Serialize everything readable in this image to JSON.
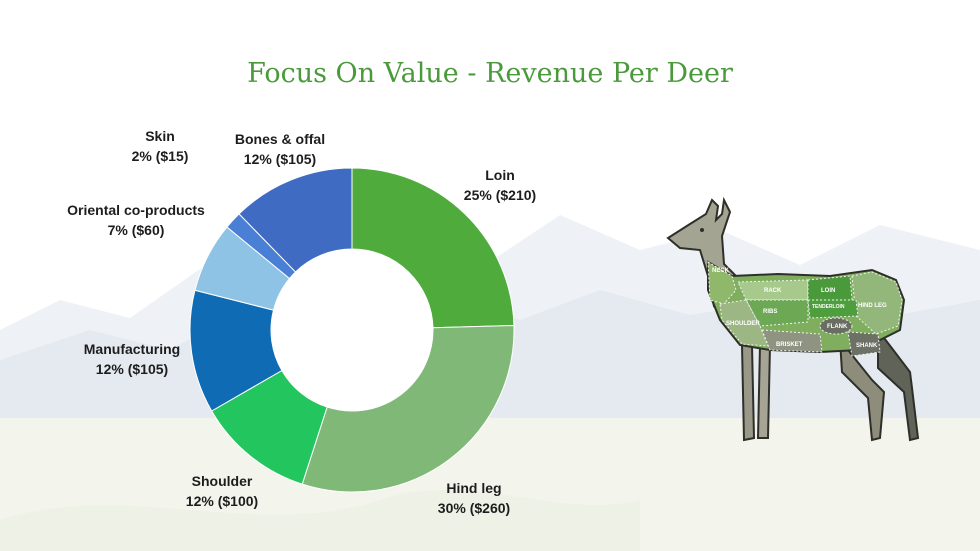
{
  "slide": {
    "title": "Focus On Value - Revenue Per Deer"
  },
  "chart_data": {
    "type": "pie",
    "title": "Focus On Value - Revenue Per Deer",
    "categories": [
      "Loin",
      "Hind leg",
      "Shoulder",
      "Manufacturing",
      "Oriental co-products",
      "Skin",
      "Bones & offal"
    ],
    "values": [
      210,
      260,
      100,
      105,
      60,
      15,
      105
    ],
    "percent_labels": [
      "25% ($210)",
      "30% ($260)",
      "12% ($100)",
      "12% ($105)",
      "7% ($60)",
      "2% ($15)",
      "12% ($105)"
    ],
    "percentages": [
      25,
      30,
      12,
      12,
      7,
      2,
      12
    ],
    "colors": [
      "#4eab3c",
      "#7fb877",
      "#22c55e",
      "#0e6bb4",
      "#8ec3e6",
      "#4a7fd6",
      "#3f6cc2"
    ],
    "legend": "none"
  },
  "diagram": {
    "cuts": [
      "NECK",
      "RACK",
      "LOIN",
      "SHOULDER",
      "RIBS",
      "TENDERLOIN",
      "HIND LEG",
      "FLANK",
      "BRISKET",
      "SHANK"
    ]
  }
}
